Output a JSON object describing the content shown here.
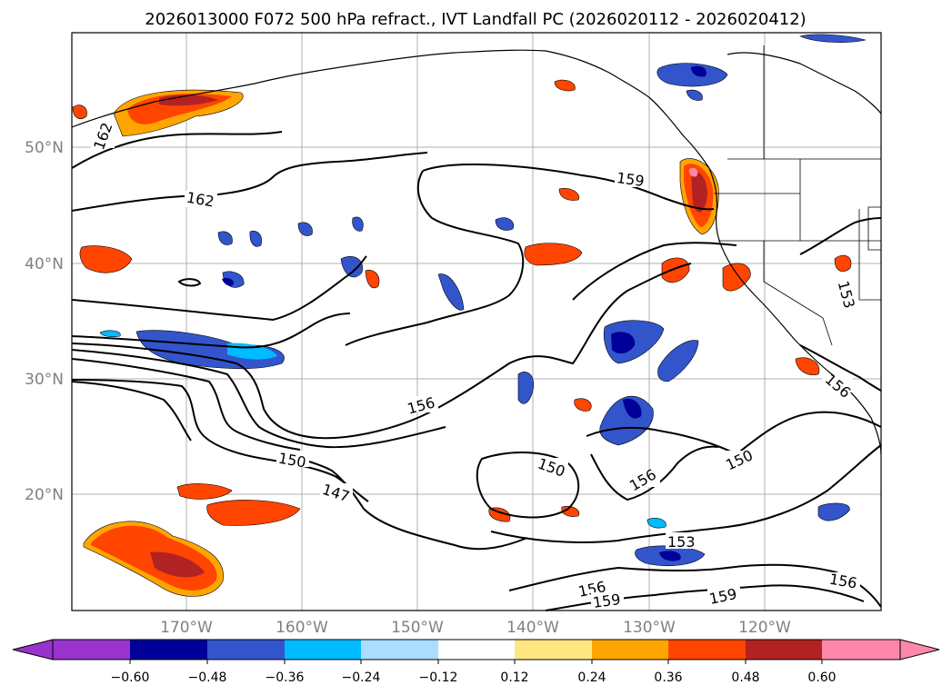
{
  "title": "2026013000 F072 500 hPa refract., IVT Landfall PC (2026020112 - 2026020412)",
  "map": {
    "lat_labels": [
      "50°N",
      "40°N",
      "30°N",
      "20°N"
    ],
    "lon_labels": [
      "170°W",
      "160°W",
      "150°W",
      "140°W",
      "130°W",
      "120°W"
    ],
    "contour_labels": [
      "162",
      "162",
      "159",
      "156",
      "150",
      "147",
      "150",
      "156",
      "150",
      "153",
      "156",
      "159",
      "159",
      "156",
      "153",
      "156"
    ],
    "contour_values": [
      147,
      150,
      153,
      156,
      159,
      162
    ],
    "gridlines": true,
    "coastline_color": "#000000",
    "contour_color": "#000000"
  },
  "colorbar": {
    "tick_labels": [
      "−0.60",
      "−0.48",
      "−0.36",
      "−0.24",
      "−0.12",
      "0.12",
      "0.24",
      "0.36",
      "0.48",
      "0.60"
    ],
    "levels": [
      -0.6,
      -0.48,
      -0.36,
      -0.24,
      -0.12,
      0.12,
      0.24,
      0.36,
      0.48,
      0.6
    ],
    "colors": [
      "#9933cc",
      "#000099",
      "#3355cc",
      "#00bbff",
      "#aaddff",
      "#ffffff",
      "#ffe680",
      "#ffa500",
      "#ff4500",
      "#b22222",
      "#ff88aa"
    ],
    "extend": "both"
  },
  "fill_colors": {
    "neg_light": "#aaddff",
    "neg_mid": "#00bbff",
    "neg_strong": "#3355cc",
    "neg_max": "#000099",
    "pos_light": "#ffe680",
    "pos_mid": "#ffa500",
    "pos_strong": "#ff4500",
    "pos_high": "#b22222",
    "pos_max": "#ff88aa"
  }
}
